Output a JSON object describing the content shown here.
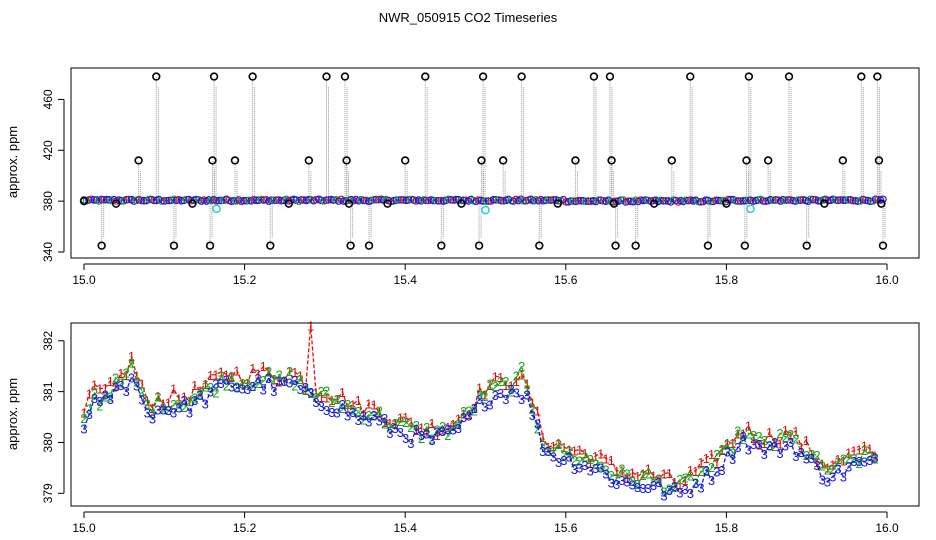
{
  "title": "NWR_050915  CO2 Timeseries",
  "colors": {
    "black": "#000000",
    "blue": "#1a1adf",
    "green": "#1aa51a",
    "red": "#e01010",
    "cyan": "#2fd0d0",
    "grey": "#9a9a9a"
  },
  "chart_data": [
    {
      "type": "scatter",
      "ylabel": "approx. ppm",
      "xlim": [
        15.0,
        16.0
      ],
      "ylim": [
        340,
        480
      ],
      "xticks": [
        15.0,
        15.2,
        15.4,
        15.6,
        15.8,
        16.0
      ],
      "xtick_labels": [
        "15.0",
        "15.2",
        "15.4",
        "15.6",
        "15.8",
        "16.0"
      ],
      "yticks": [
        340,
        380,
        420,
        460
      ],
      "ytick_labels": [
        "340",
        "380",
        "420",
        "460"
      ],
      "baseline_level": 380.7,
      "cyan_points": [
        {
          "x": 15.165,
          "y": 374
        },
        {
          "x": 15.5,
          "y": 373
        },
        {
          "x": 15.83,
          "y": 374
        }
      ],
      "outliers": [
        {
          "x": 15.0,
          "y": 380
        },
        {
          "x": 15.022,
          "y": 345
        },
        {
          "x": 15.04,
          "y": 378
        },
        {
          "x": 15.068,
          "y": 412
        },
        {
          "x": 15.09,
          "y": 478
        },
        {
          "x": 15.112,
          "y": 345
        },
        {
          "x": 15.135,
          "y": 378
        },
        {
          "x": 15.157,
          "y": 345
        },
        {
          "x": 15.16,
          "y": 412
        },
        {
          "x": 15.162,
          "y": 478
        },
        {
          "x": 15.188,
          "y": 412
        },
        {
          "x": 15.21,
          "y": 478
        },
        {
          "x": 15.232,
          "y": 345
        },
        {
          "x": 15.255,
          "y": 378
        },
        {
          "x": 15.28,
          "y": 412
        },
        {
          "x": 15.302,
          "y": 478
        },
        {
          "x": 15.325,
          "y": 478
        },
        {
          "x": 15.327,
          "y": 412
        },
        {
          "x": 15.33,
          "y": 378
        },
        {
          "x": 15.332,
          "y": 345
        },
        {
          "x": 15.355,
          "y": 345
        },
        {
          "x": 15.378,
          "y": 378
        },
        {
          "x": 15.4,
          "y": 412
        },
        {
          "x": 15.425,
          "y": 478
        },
        {
          "x": 15.445,
          "y": 345
        },
        {
          "x": 15.47,
          "y": 378
        },
        {
          "x": 15.492,
          "y": 345
        },
        {
          "x": 15.495,
          "y": 412
        },
        {
          "x": 15.497,
          "y": 478
        },
        {
          "x": 15.522,
          "y": 412
        },
        {
          "x": 15.545,
          "y": 478
        },
        {
          "x": 15.567,
          "y": 345
        },
        {
          "x": 15.59,
          "y": 378
        },
        {
          "x": 15.612,
          "y": 412
        },
        {
          "x": 15.635,
          "y": 478
        },
        {
          "x": 15.655,
          "y": 478
        },
        {
          "x": 15.657,
          "y": 412
        },
        {
          "x": 15.66,
          "y": 378
        },
        {
          "x": 15.662,
          "y": 345
        },
        {
          "x": 15.687,
          "y": 345
        },
        {
          "x": 15.71,
          "y": 378
        },
        {
          "x": 15.732,
          "y": 412
        },
        {
          "x": 15.755,
          "y": 478
        },
        {
          "x": 15.777,
          "y": 345
        },
        {
          "x": 15.8,
          "y": 378
        },
        {
          "x": 15.823,
          "y": 345
        },
        {
          "x": 15.825,
          "y": 412
        },
        {
          "x": 15.828,
          "y": 478
        },
        {
          "x": 15.852,
          "y": 412
        },
        {
          "x": 15.878,
          "y": 478
        },
        {
          "x": 15.9,
          "y": 345
        },
        {
          "x": 15.922,
          "y": 378
        },
        {
          "x": 15.945,
          "y": 412
        },
        {
          "x": 15.968,
          "y": 478
        },
        {
          "x": 15.988,
          "y": 478
        },
        {
          "x": 15.99,
          "y": 412
        },
        {
          "x": 15.993,
          "y": 378
        },
        {
          "x": 15.995,
          "y": 345
        }
      ]
    },
    {
      "type": "line",
      "ylabel": "approx. ppm",
      "xlim": [
        15.0,
        16.0
      ],
      "ylim": [
        378.75,
        382.35
      ],
      "xticks": [
        15.0,
        15.2,
        15.4,
        15.6,
        15.8,
        16.0
      ],
      "xtick_labels": [
        "15.0",
        "15.2",
        "15.4",
        "15.6",
        "15.8",
        "16.0"
      ],
      "yticks": [
        379,
        380,
        381,
        382
      ],
      "ytick_labels": [
        "379",
        "380",
        "381",
        "382"
      ],
      "marker_labels": [
        "1",
        "2",
        "3"
      ],
      "series": [
        {
          "name": "1",
          "color": "red"
        },
        {
          "name": "2",
          "color": "green"
        },
        {
          "name": "3",
          "color": "blue"
        }
      ],
      "profile": [
        [
          15.0,
          380.4
        ],
        [
          15.01,
          381.0
        ],
        [
          15.02,
          380.8
        ],
        [
          15.035,
          381.1
        ],
        [
          15.05,
          381.2
        ],
        [
          15.06,
          381.5
        ],
        [
          15.07,
          381.0
        ],
        [
          15.08,
          380.7
        ],
        [
          15.1,
          380.8
        ],
        [
          15.12,
          380.8
        ],
        [
          15.14,
          380.9
        ],
        [
          15.16,
          381.1
        ],
        [
          15.18,
          381.3
        ],
        [
          15.2,
          381.2
        ],
        [
          15.22,
          381.3
        ],
        [
          15.24,
          381.2
        ],
        [
          15.26,
          381.3
        ],
        [
          15.28,
          381.0
        ],
        [
          15.3,
          380.9
        ],
        [
          15.32,
          380.8
        ],
        [
          15.34,
          380.6
        ],
        [
          15.36,
          380.6
        ],
        [
          15.38,
          380.4
        ],
        [
          15.4,
          380.3
        ],
        [
          15.42,
          380.2
        ],
        [
          15.44,
          380.2
        ],
        [
          15.46,
          380.3
        ],
        [
          15.48,
          380.6
        ],
        [
          15.5,
          381.0
        ],
        [
          15.52,
          381.1
        ],
        [
          15.54,
          381.2
        ],
        [
          15.555,
          380.9
        ],
        [
          15.57,
          380.1
        ],
        [
          15.58,
          379.9
        ],
        [
          15.6,
          379.8
        ],
        [
          15.62,
          379.7
        ],
        [
          15.64,
          379.6
        ],
        [
          15.66,
          379.4
        ],
        [
          15.68,
          379.3
        ],
        [
          15.7,
          379.3
        ],
        [
          15.72,
          379.2
        ],
        [
          15.74,
          379.1
        ],
        [
          15.76,
          379.3
        ],
        [
          15.78,
          379.5
        ],
        [
          15.8,
          379.8
        ],
        [
          15.82,
          380.2
        ],
        [
          15.84,
          380.0
        ],
        [
          15.86,
          380.0
        ],
        [
          15.88,
          380.1
        ],
        [
          15.9,
          379.8
        ],
        [
          15.92,
          379.5
        ],
        [
          15.94,
          379.5
        ],
        [
          15.96,
          379.7
        ],
        [
          15.98,
          379.7
        ]
      ],
      "spikes": [
        {
          "series": "1",
          "x": 15.284,
          "y": 382.3
        },
        {
          "series": "1",
          "x": 15.06,
          "y": 381.7
        },
        {
          "series": "2",
          "x": 15.543,
          "y": 381.5
        }
      ]
    }
  ]
}
